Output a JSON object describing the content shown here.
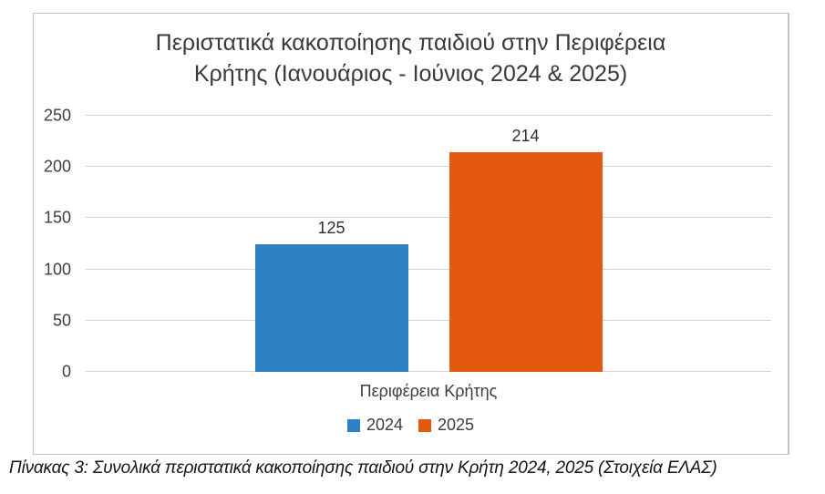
{
  "figure": {
    "title_lines": [
      "Περιστατικά κακοποίησης παιδιού στην Περιφέρεια",
      "Κρήτης (Ιανουάριος - Ιούνιος 2024 & 2025)"
    ],
    "xlabel": "Περιφέρεια Κρήτης",
    "caption": "Πίνακας 3: Συνολικά περιστατικά κακοποίησης παιδιού στην Κρήτη 2024, 2025 (Στοιχεία ΕΛΑΣ)"
  },
  "chart_data": {
    "type": "bar",
    "title": "Περιστατικά κακοποίησης παιδιού στην Περιφέρεια Κρήτης (Ιανουάριος - Ιούνιος 2024 & 2025)",
    "categories": [
      "Περιφέρεια Κρήτης"
    ],
    "series": [
      {
        "name": "2024",
        "values": [
          125
        ],
        "color": "#2E80C3"
      },
      {
        "name": "2025",
        "values": [
          214
        ],
        "color": "#E3590E"
      }
    ],
    "xlabel": "Περιφέρεια Κρήτης",
    "ylabel": "",
    "ylim": [
      0,
      250
    ],
    "yticks": [
      0,
      50,
      100,
      150,
      200,
      250
    ],
    "grid": true,
    "legend_position": "bottom",
    "colors": {
      "grid": "#d3d3d3",
      "text": "#3d3d3d",
      "border": "#c2c2c2"
    }
  }
}
